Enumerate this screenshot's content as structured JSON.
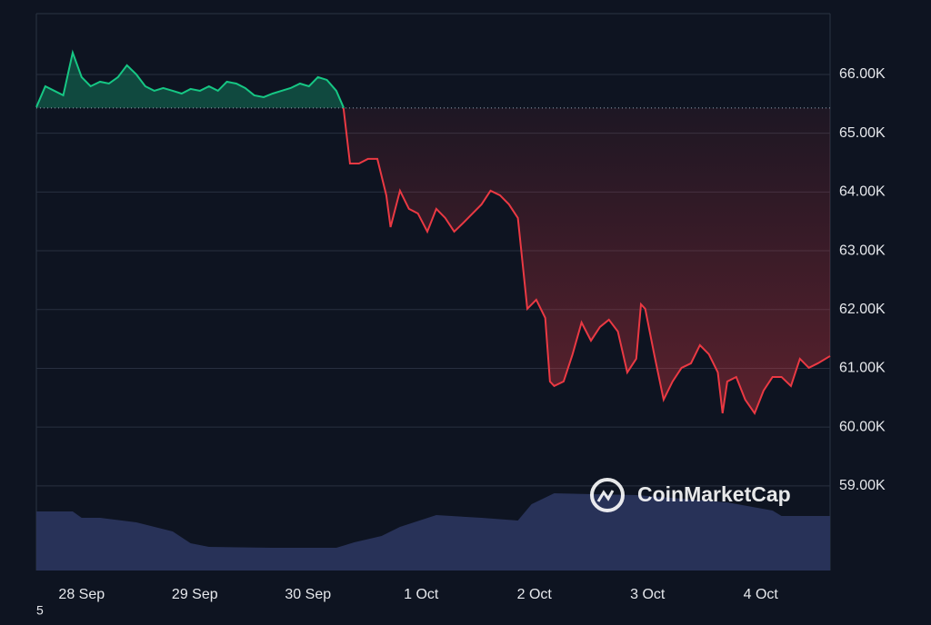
{
  "chart_data": {
    "type": "line",
    "x": [
      -9.6,
      -7.7,
      -5.8,
      -3.9,
      -1.9,
      0,
      1.9,
      3.9,
      5.8,
      7.7,
      9.6,
      11.6,
      13.5,
      15.4,
      17.3,
      19.3,
      21.2,
      23.1,
      25.1,
      27,
      28.9,
      30.8,
      32.8,
      34.7,
      36.6,
      38.6,
      40.5,
      42.4,
      44.3,
      46.3,
      48.2,
      50.1,
      52,
      54,
      55.5,
      56.9,
      58.8,
      60.7,
      62.7,
      64.6,
      65.5,
      67.5,
      69.4,
      71.3,
      73.3,
      75.2,
      77.1,
      79,
      81,
      82.9,
      84.8,
      86.7,
      88.7,
      90.6,
      92.5,
      93.5,
      94.5,
      96.4,
      98.3,
      99.3,
      100.2,
      102.2,
      104.1,
      106,
      108,
      109.9,
      111.8,
      113.7,
      115.7,
      117.6,
      118.6,
      119.5,
      121.4,
      123.4,
      125.3,
      127.2,
      129.2,
      131.1,
      133,
      134.9,
      135.9,
      136.9,
      138.8,
      140.7,
      142.7,
      144.6,
      146.5,
      148.4,
      150.4,
      152.3,
      154.2,
      156.1,
      158.7
    ],
    "series": [
      {
        "name": "Price",
        "values": [
          65444,
          65799,
          65722,
          65645,
          66371,
          65954,
          65799,
          65876,
          65845,
          65954,
          66155,
          66000,
          65799,
          65722,
          65768,
          65722,
          65675,
          65753,
          65722,
          65799,
          65722,
          65876,
          65845,
          65768,
          65645,
          65614,
          65675,
          65722,
          65768,
          65845,
          65799,
          65954,
          65907,
          65722,
          65444,
          64485,
          64485,
          64563,
          64563,
          63944,
          63403,
          64022,
          63713,
          63635,
          63326,
          63713,
          63558,
          63326,
          63481,
          63635,
          63790,
          64022,
          63944,
          63790,
          63558,
          62785,
          62012,
          62167,
          61858,
          60776,
          60699,
          60776,
          61240,
          61780,
          61471,
          61703,
          61827,
          61626,
          60930,
          61162,
          62090,
          62012,
          61240,
          60467,
          60776,
          61008,
          61085,
          61394,
          61240,
          60930,
          60235,
          60776,
          60853,
          60467,
          60235,
          60621,
          60853,
          60853,
          60699,
          61162,
          61008,
          61085,
          61209
        ]
      }
    ],
    "baseline": 65430,
    "up_color": "#16c784",
    "down_color": "#ea3943",
    "ylim": [
      57560,
      67035
    ],
    "yticks": [
      {
        "value": 59000,
        "label": "59.00K"
      },
      {
        "value": 60000,
        "label": "60.00K"
      },
      {
        "value": 61000,
        "label": "61.00K"
      },
      {
        "value": 62000,
        "label": "62.00K"
      },
      {
        "value": 63000,
        "label": "63.00K"
      },
      {
        "value": 64000,
        "label": "64.00K"
      },
      {
        "value": 65000,
        "label": "65.00K"
      },
      {
        "value": 66000,
        "label": "66.00K"
      }
    ],
    "xlim": [
      -9.6,
      158.7
    ],
    "xticks": [
      {
        "value": 0,
        "label": "28 Sep"
      },
      {
        "value": 24,
        "label": "29 Sep"
      },
      {
        "value": 48,
        "label": "30 Sep"
      },
      {
        "value": 72,
        "label": "1 Oct"
      },
      {
        "value": 96,
        "label": "2 Oct"
      },
      {
        "value": 120,
        "label": "3 Oct"
      },
      {
        "value": 144,
        "label": "4 Oct"
      }
    ],
    "grid": true,
    "volume": {
      "name": "Volume",
      "color": "#283258",
      "ylim": [
        0,
        100
      ],
      "x": [
        -9.6,
        -1.9,
        0,
        3.9,
        11.6,
        19.3,
        23.1,
        27,
        40.5,
        54,
        57.8,
        63.6,
        67.5,
        75.2,
        84.8,
        92.5,
        95.4,
        100.2,
        117.6,
        136.9,
        146.5,
        148.4,
        158.7
      ],
      "values": [
        65,
        65,
        58,
        58,
        53,
        43,
        30,
        26,
        25,
        25,
        31,
        38,
        48,
        61,
        58,
        55,
        73,
        85,
        83,
        75,
        66,
        60,
        60
      ]
    },
    "watermark": "CoinMarketCap",
    "corner_text": "5"
  }
}
